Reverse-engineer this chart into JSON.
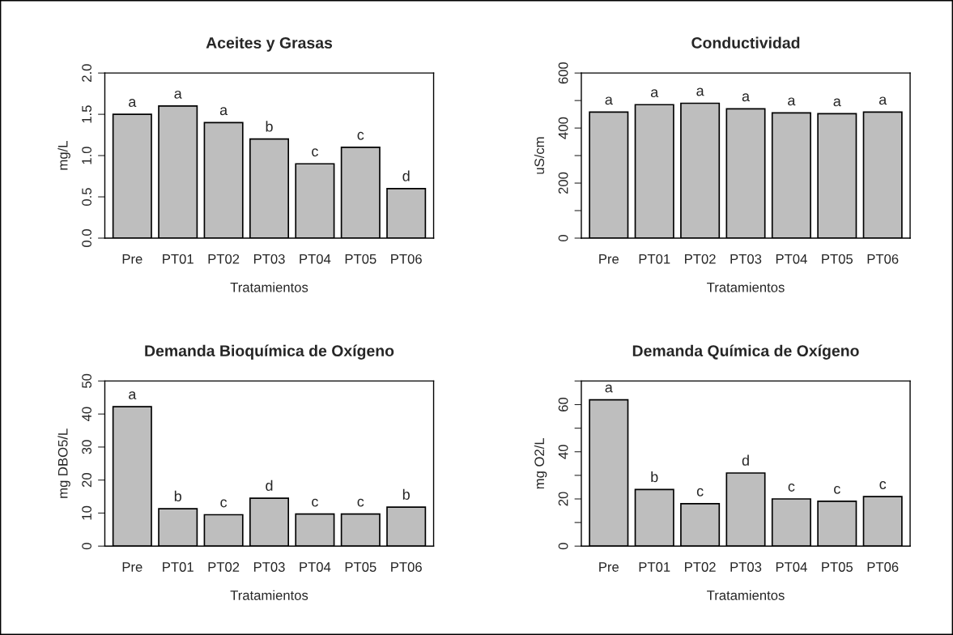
{
  "chart_data": [
    {
      "type": "bar",
      "title": "Aceites y Grasas",
      "xlabel": "Tratamientos",
      "ylabel": "mg/L",
      "categories": [
        "Pre",
        "PT01",
        "PT02",
        "PT03",
        "PT04",
        "PT05",
        "PT06"
      ],
      "values": [
        1.5,
        1.6,
        1.4,
        1.2,
        0.9,
        1.1,
        0.6
      ],
      "color": "#bebebe",
      "ylim": [
        0,
        2
      ],
      "yticks": [
        {
          "value": 0,
          "label": "0.0"
        },
        0.5,
        {
          "value": 1,
          "label": "1.0"
        },
        1.5,
        {
          "value": 2,
          "label": "2.0"
        }
      ],
      "grid": false,
      "annotations": [
        {
          "text": "a",
          "x": "Pre",
          "y": 1.5
        },
        {
          "text": "a",
          "x": "PT01",
          "y": 1.6
        },
        {
          "text": "a",
          "x": "PT02",
          "y": 1.4
        },
        {
          "text": "b",
          "x": "PT03",
          "y": 1.2
        },
        {
          "text": "c",
          "x": "PT04",
          "y": 0.9
        },
        {
          "text": "c",
          "x": "PT05",
          "y": 1.1
        },
        {
          "text": "d",
          "x": "PT06",
          "y": 0.6
        }
      ]
    },
    {
      "type": "bar",
      "title": "Conductividad",
      "xlabel": "Tratamientos",
      "ylabel": "uS/cm",
      "categories": [
        "Pre",
        "PT01",
        "PT02",
        "PT03",
        "PT04",
        "PT05",
        "PT06"
      ],
      "values": [
        458,
        485,
        490,
        470,
        455,
        452,
        458
      ],
      "color": "#bebebe",
      "ylim": [
        0,
        600
      ],
      "yticks": [
        0,
        {
          "value": 100,
          "label": null
        },
        200,
        {
          "value": 300,
          "label": null
        },
        400,
        {
          "value": 500,
          "label": null
        },
        600
      ],
      "grid": false,
      "annotations": [
        {
          "text": "a",
          "x": "Pre",
          "y": 458
        },
        {
          "text": "a",
          "x": "PT01",
          "y": 485
        },
        {
          "text": "a",
          "x": "PT02",
          "y": 490
        },
        {
          "text": "a",
          "x": "PT03",
          "y": 470
        },
        {
          "text": "a",
          "x": "PT04",
          "y": 455
        },
        {
          "text": "a",
          "x": "PT05",
          "y": 452
        },
        {
          "text": "a",
          "x": "PT06",
          "y": 458
        }
      ]
    },
    {
      "type": "bar",
      "title": "Demanda Bioquímica de Oxígeno",
      "xlabel": "Tratamientos",
      "ylabel": "mg DBO5/L",
      "categories": [
        "Pre",
        "PT01",
        "PT02",
        "PT03",
        "PT04",
        "PT05",
        "PT06"
      ],
      "values": [
        42.2,
        11.3,
        9.5,
        14.5,
        9.7,
        9.7,
        11.8
      ],
      "color": "#bebebe",
      "ylim": [
        0,
        50
      ],
      "yticks": [
        0,
        10,
        20,
        30,
        40,
        50
      ],
      "grid": false,
      "annotations": [
        {
          "text": "a",
          "x": "Pre",
          "y": 42.2
        },
        {
          "text": "b",
          "x": "PT01",
          "y": 11.3
        },
        {
          "text": "c",
          "x": "PT02",
          "y": 9.5
        },
        {
          "text": "d",
          "x": "PT03",
          "y": 14.5
        },
        {
          "text": "c",
          "x": "PT04",
          "y": 9.7
        },
        {
          "text": "c",
          "x": "PT05",
          "y": 9.7
        },
        {
          "text": "b",
          "x": "PT06",
          "y": 11.8
        }
      ]
    },
    {
      "type": "bar",
      "title": "Demanda Química de Oxígeno",
      "xlabel": "Tratamientos",
      "ylabel": "mg O2/L",
      "categories": [
        "Pre",
        "PT01",
        "PT02",
        "PT03",
        "PT04",
        "PT05",
        "PT06"
      ],
      "values": [
        62,
        24,
        18,
        31,
        20,
        19,
        21
      ],
      "color": "#bebebe",
      "ylim": [
        0,
        70
      ],
      "yticks": [
        0,
        {
          "value": 10,
          "label": null
        },
        20,
        {
          "value": 30,
          "label": null
        },
        40,
        {
          "value": 50,
          "label": null
        },
        60,
        {
          "value": 70,
          "label": null
        }
      ],
      "grid": false,
      "annotations": [
        {
          "text": "a",
          "x": "Pre",
          "y": 62
        },
        {
          "text": "b",
          "x": "PT01",
          "y": 24
        },
        {
          "text": "c",
          "x": "PT02",
          "y": 18
        },
        {
          "text": "d",
          "x": "PT03",
          "y": 31
        },
        {
          "text": "c",
          "x": "PT04",
          "y": 20
        },
        {
          "text": "c",
          "x": "PT05",
          "y": 19
        },
        {
          "text": "c",
          "x": "PT06",
          "y": 21
        }
      ]
    }
  ]
}
